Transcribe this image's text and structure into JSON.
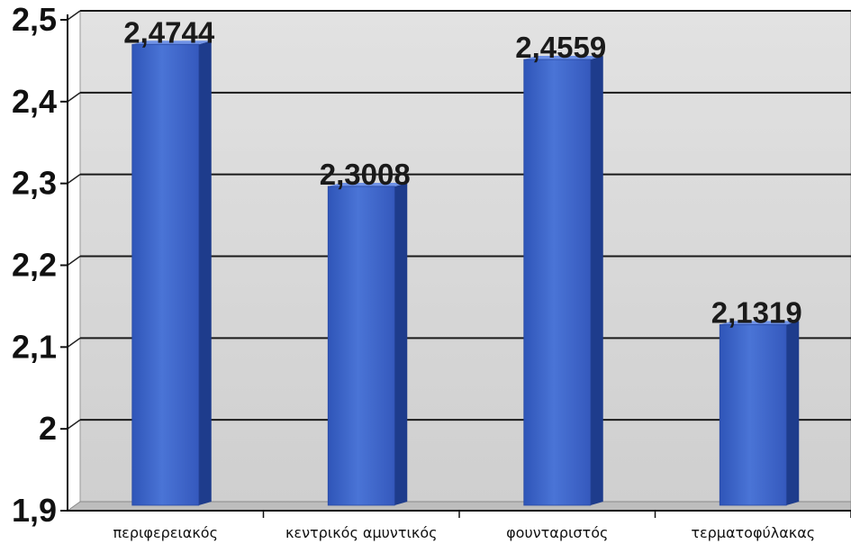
{
  "chart_data": {
    "type": "bar",
    "categories": [
      "περιφερειακός",
      "κεντρικός αμυντικός",
      "φουνταριστός",
      "τερματοφύλακας"
    ],
    "values": [
      2.4744,
      2.3008,
      2.4559,
      2.1319
    ],
    "data_labels": [
      "2,4744",
      "2,3008",
      "2,4559",
      "2,1319"
    ],
    "y_ticks": [
      1.9,
      2.0,
      2.1,
      2.2,
      2.3,
      2.4,
      2.5
    ],
    "y_tick_labels": [
      "1,9",
      "2",
      "2,1",
      "2,2",
      "2,3",
      "2,4",
      "2,5"
    ],
    "ylim": [
      1.9,
      2.5
    ],
    "grid": true,
    "legend": false,
    "bar_color": "#3a62c4",
    "bar_side_color": "#1e3c8c",
    "background_color": "#d4d4d4"
  }
}
